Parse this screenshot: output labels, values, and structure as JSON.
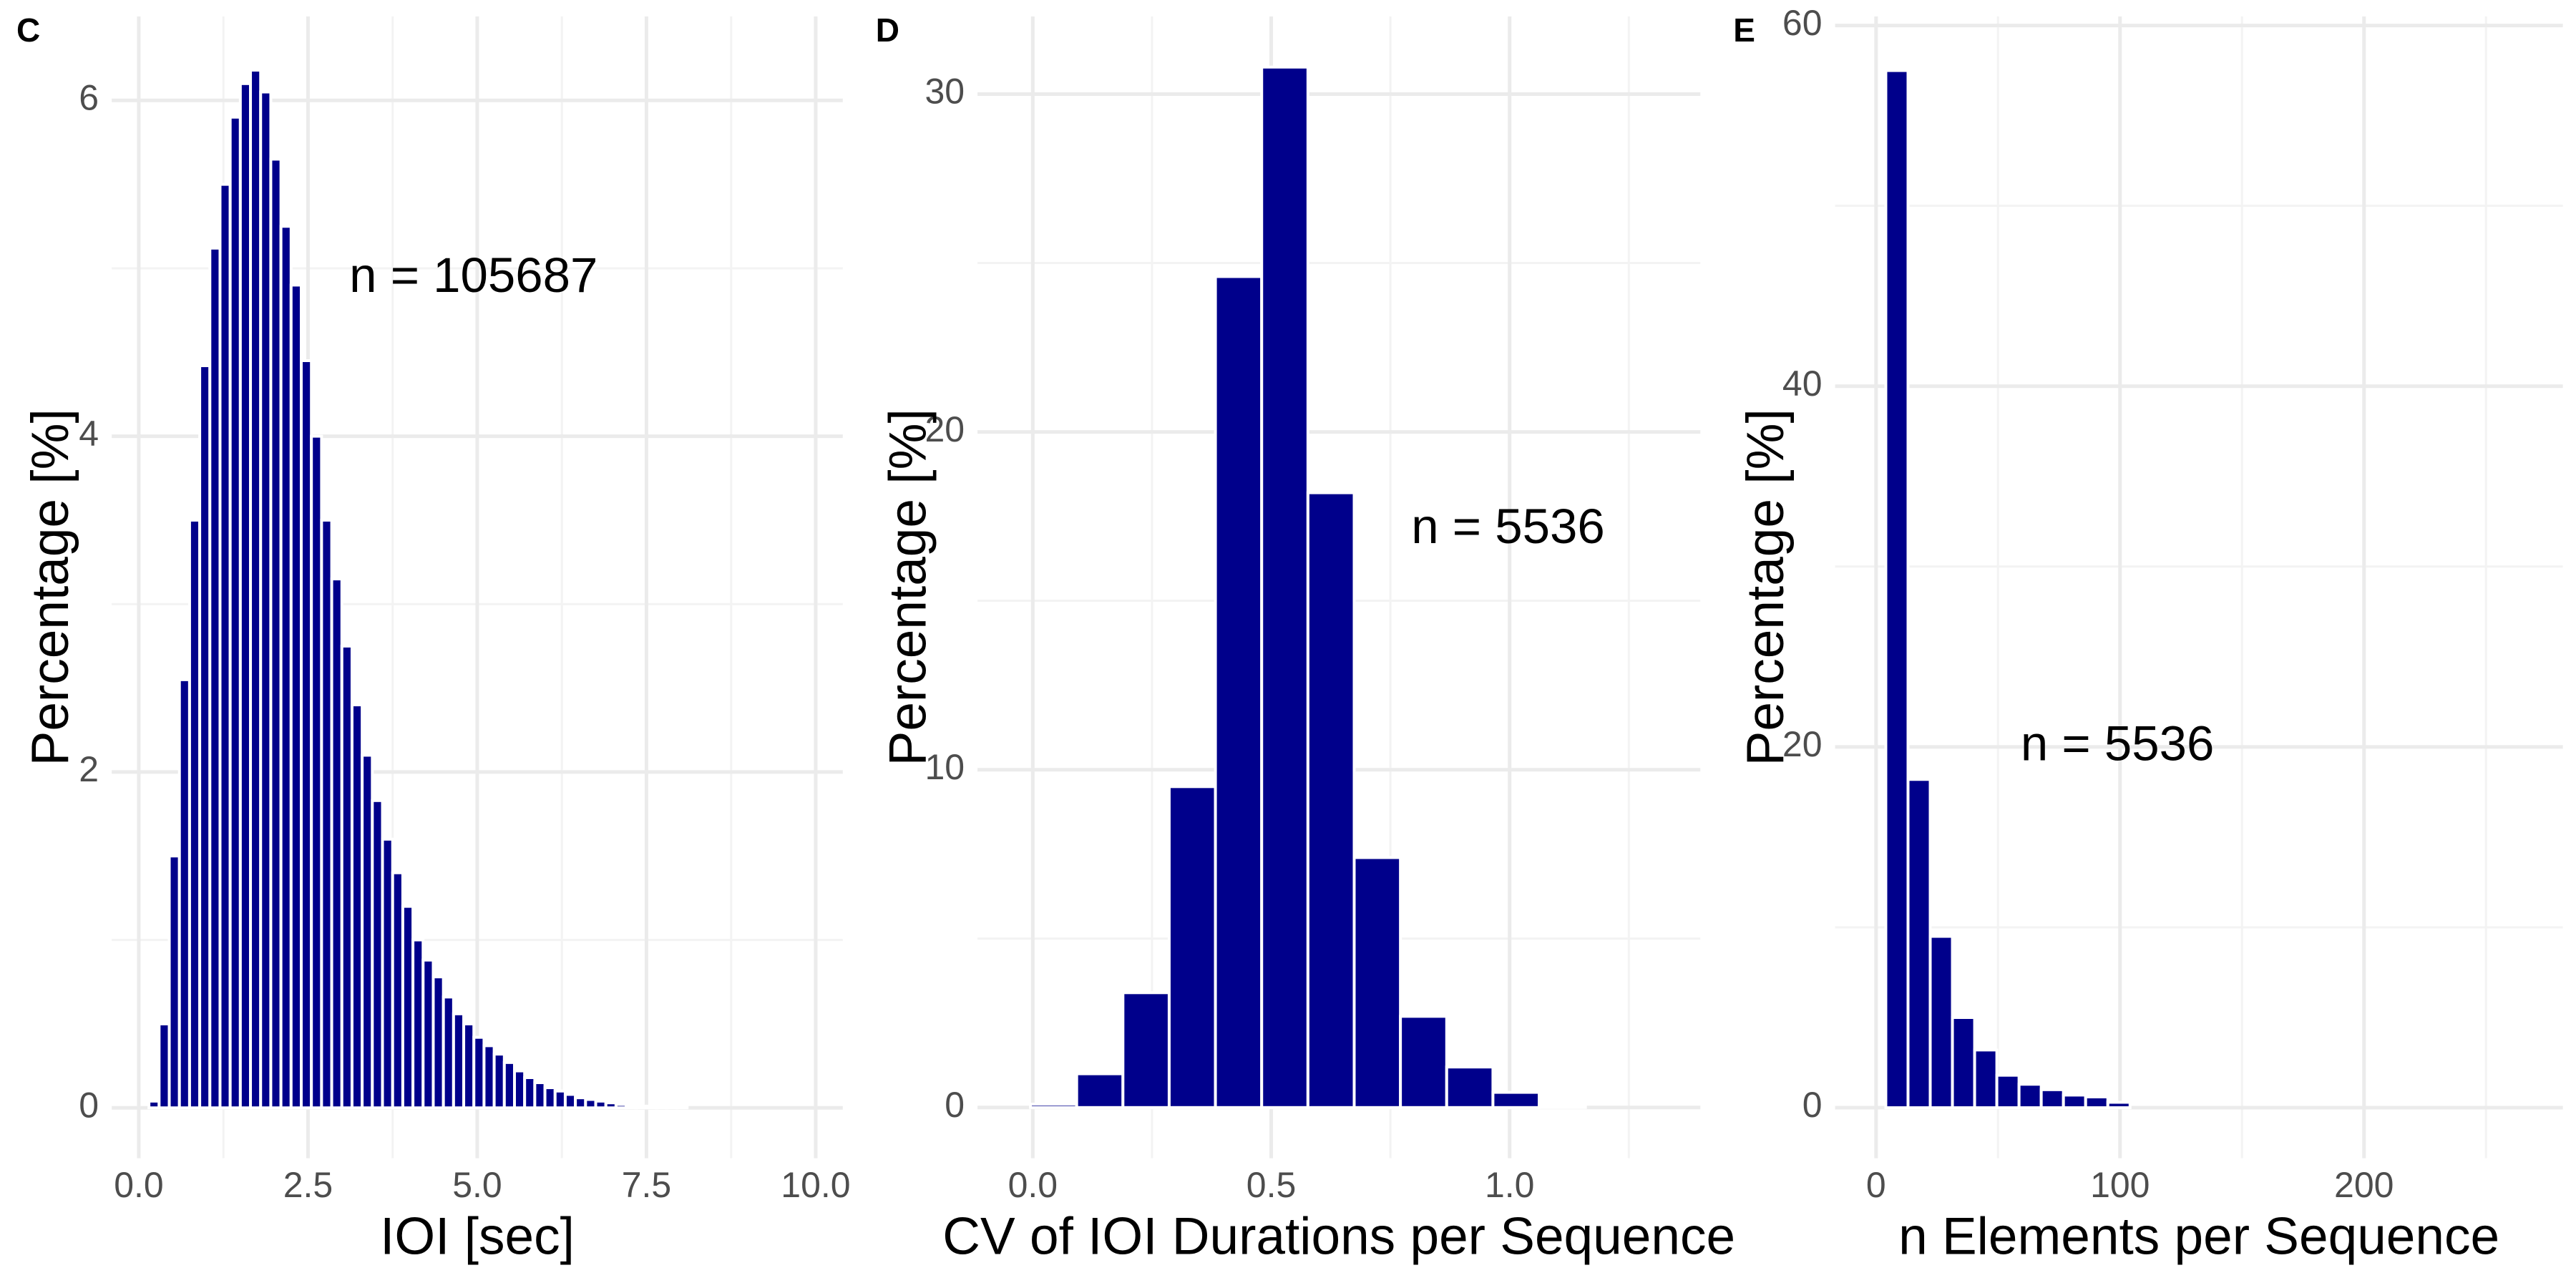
{
  "chart_data": [
    {
      "type": "histogram",
      "panel_label": "C",
      "xlabel": "IOI [sec]",
      "ylabel": "Percentage [%]",
      "annotation": "n = 105687",
      "color": "#00008b",
      "grid": true,
      "bins": [
        0.15,
        0.3,
        0.45,
        0.6,
        0.75,
        0.9,
        1.05,
        1.2,
        1.35,
        1.5,
        1.65,
        1.8,
        1.95,
        2.1,
        2.25,
        2.4,
        2.55,
        2.7,
        2.85,
        3.0,
        3.15,
        3.3,
        3.45,
        3.6,
        3.75,
        3.9,
        4.05,
        4.2,
        4.35,
        4.5,
        4.65,
        4.8,
        4.95,
        5.1,
        5.25,
        5.4,
        5.55,
        5.7,
        5.85,
        6.0,
        6.15,
        6.3,
        6.45,
        6.6,
        6.75,
        6.9,
        7.05,
        7.2,
        7.35,
        7.5,
        7.65,
        7.8,
        7.95,
        8.1
      ],
      "values": [
        0.04,
        0.5,
        1.5,
        2.55,
        3.5,
        4.42,
        5.12,
        5.5,
        5.9,
        6.1,
        6.18,
        6.05,
        5.65,
        5.25,
        4.9,
        4.45,
        4.0,
        3.5,
        3.15,
        2.75,
        2.4,
        2.1,
        1.83,
        1.6,
        1.4,
        1.2,
        1.0,
        0.88,
        0.78,
        0.66,
        0.56,
        0.5,
        0.42,
        0.37,
        0.32,
        0.27,
        0.22,
        0.18,
        0.15,
        0.12,
        0.1,
        0.08,
        0.06,
        0.05,
        0.04,
        0.03,
        0.02,
        0.015,
        0.01,
        0.01,
        0.005,
        0.005,
        0.003
      ],
      "xlim": [
        -0.4,
        10.4
      ],
      "ylim": [
        -0.3,
        6.5
      ],
      "xticks": [
        {
          "value": 0,
          "label": "0.0"
        },
        {
          "value": 2.5,
          "label": "2.5"
        },
        {
          "value": 5,
          "label": "5.0"
        },
        {
          "value": 7.5,
          "label": "7.5"
        },
        {
          "value": 10,
          "label": "10.0"
        }
      ],
      "yticks": [
        0,
        2,
        4,
        6
      ]
    },
    {
      "type": "histogram",
      "panel_label": "D",
      "xlabel": "CV of IOI Durations per Sequence",
      "ylabel": "Percentage [%]",
      "annotation": "n = 5536",
      "color": "#00008b",
      "grid": true,
      "bins": [
        -0.005,
        0.092,
        0.189,
        0.286,
        0.383,
        0.48,
        0.577,
        0.674,
        0.771,
        0.868,
        0.965,
        1.062,
        1.159
      ],
      "values": [
        0.1,
        1.0,
        3.4,
        9.5,
        24.6,
        30.8,
        18.2,
        7.4,
        2.7,
        1.2,
        0.45,
        0.08
      ],
      "xlim": [
        -0.116,
        1.4
      ],
      "ylim": [
        -1.5,
        32.3
      ],
      "xticks": [
        {
          "value": 0,
          "label": "0.0"
        },
        {
          "value": 0.5,
          "label": "0.5"
        },
        {
          "value": 1,
          "label": "1.0"
        }
      ],
      "yticks": [
        0,
        10,
        20,
        30
      ]
    },
    {
      "type": "histogram",
      "panel_label": "E",
      "xlabel": "n Elements per Sequence",
      "ylabel": "Percentage [%]",
      "annotation": "n = 5536",
      "color": "#00008b",
      "grid": true,
      "bins": [
        4,
        13.1,
        22.2,
        31.3,
        40.4,
        49.5,
        58.6,
        67.7,
        76.8,
        85.9,
        95,
        104.1
      ],
      "values": [
        57.5,
        18.2,
        9.5,
        5.0,
        3.2,
        1.8,
        1.3,
        1.0,
        0.7,
        0.6,
        0.3
      ],
      "xlim": [
        -16.8,
        281.5
      ],
      "ylim": [
        -2.8,
        60.5
      ],
      "xticks": [
        0,
        100,
        200
      ],
      "yticks": [
        0,
        20,
        40,
        60
      ]
    }
  ]
}
